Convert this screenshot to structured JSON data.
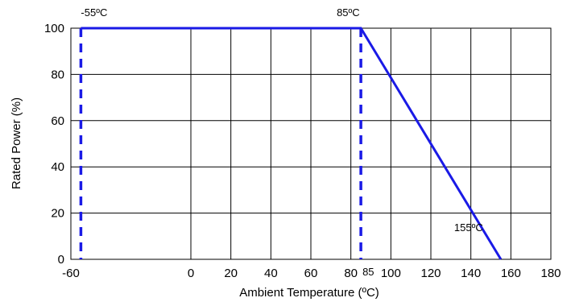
{
  "chart_data": {
    "type": "line",
    "title": "",
    "xlabel": "Ambient Temperature (ºC)",
    "ylabel": "Rated Power (%)",
    "xlim": [
      -60,
      180
    ],
    "ylim": [
      0,
      100
    ],
    "x_tick_labels": [
      "-60",
      "0",
      "20",
      "40",
      "60",
      "80",
      "100",
      "120",
      "140",
      "160",
      "180"
    ],
    "y_tick_labels": [
      "0",
      "20",
      "40",
      "60",
      "80",
      "100"
    ],
    "grid": true,
    "series": [
      {
        "style": "solid",
        "color": "#1a1ae6",
        "points": [
          [
            -55,
            100
          ],
          [
            85,
            100
          ],
          [
            155,
            0
          ]
        ]
      }
    ],
    "reference_lines": [
      {
        "x": -55,
        "style": "dashed",
        "color": "#1a1ae6"
      },
      {
        "x": 85,
        "style": "dashed",
        "color": "#1a1ae6"
      }
    ],
    "annotations": [
      {
        "text": "-55ºC",
        "x": -55,
        "y": 100
      },
      {
        "text": "85ºC",
        "x": 85,
        "y": 100
      },
      {
        "text": "155ºC",
        "x": 155,
        "y": 0
      },
      {
        "text": "85",
        "x": 85,
        "y": 0
      }
    ]
  }
}
